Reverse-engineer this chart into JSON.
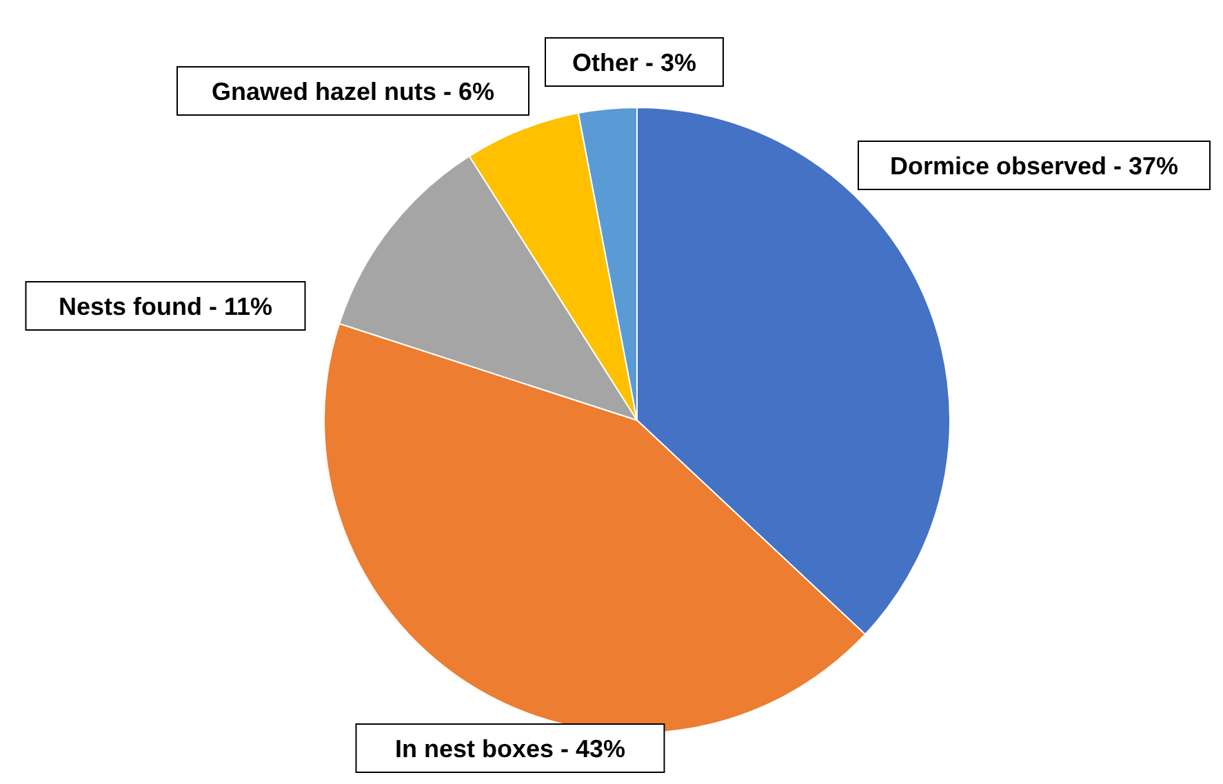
{
  "chart_data": {
    "type": "pie",
    "categories": [
      "Dormice observed",
      "In nest boxes",
      "Nests found",
      "Gnawed hazel nuts",
      "Other"
    ],
    "values": [
      37,
      43,
      11,
      6,
      3
    ],
    "colors": [
      "#4472c4",
      "#ed7d31",
      "#a5a5a5",
      "#ffc000",
      "#5b9bd5"
    ],
    "value_labels": [
      "37%",
      "43%",
      "11%",
      "6%",
      "3%"
    ],
    "legend": false
  }
}
